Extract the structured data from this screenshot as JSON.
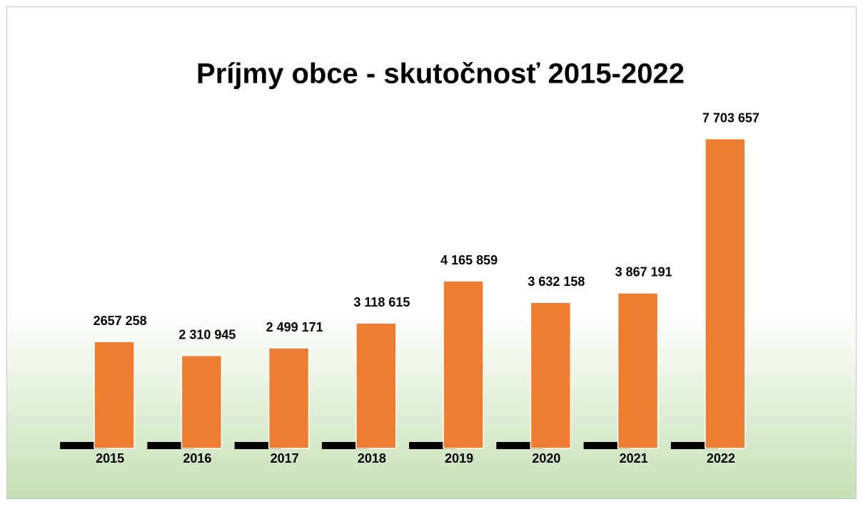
{
  "chart_data": {
    "type": "bar",
    "title": "Príjmy obce - skutočnosť 2015-2022",
    "categories": [
      "2015",
      "2016",
      "2017",
      "2018",
      "2019",
      "2020",
      "2021",
      "2022"
    ],
    "values": [
      2657258,
      2310945,
      2499171,
      3118615,
      4165859,
      3632158,
      3867191,
      7703657
    ],
    "value_labels": [
      "2657 258",
      "2 310 945",
      "2 499 171",
      "3 118 615",
      "4 165 859",
      "3 632 158",
      "3 867 191",
      "7 703 657"
    ],
    "color": "#ed7d31",
    "ylim": [
      0,
      8000000
    ]
  }
}
